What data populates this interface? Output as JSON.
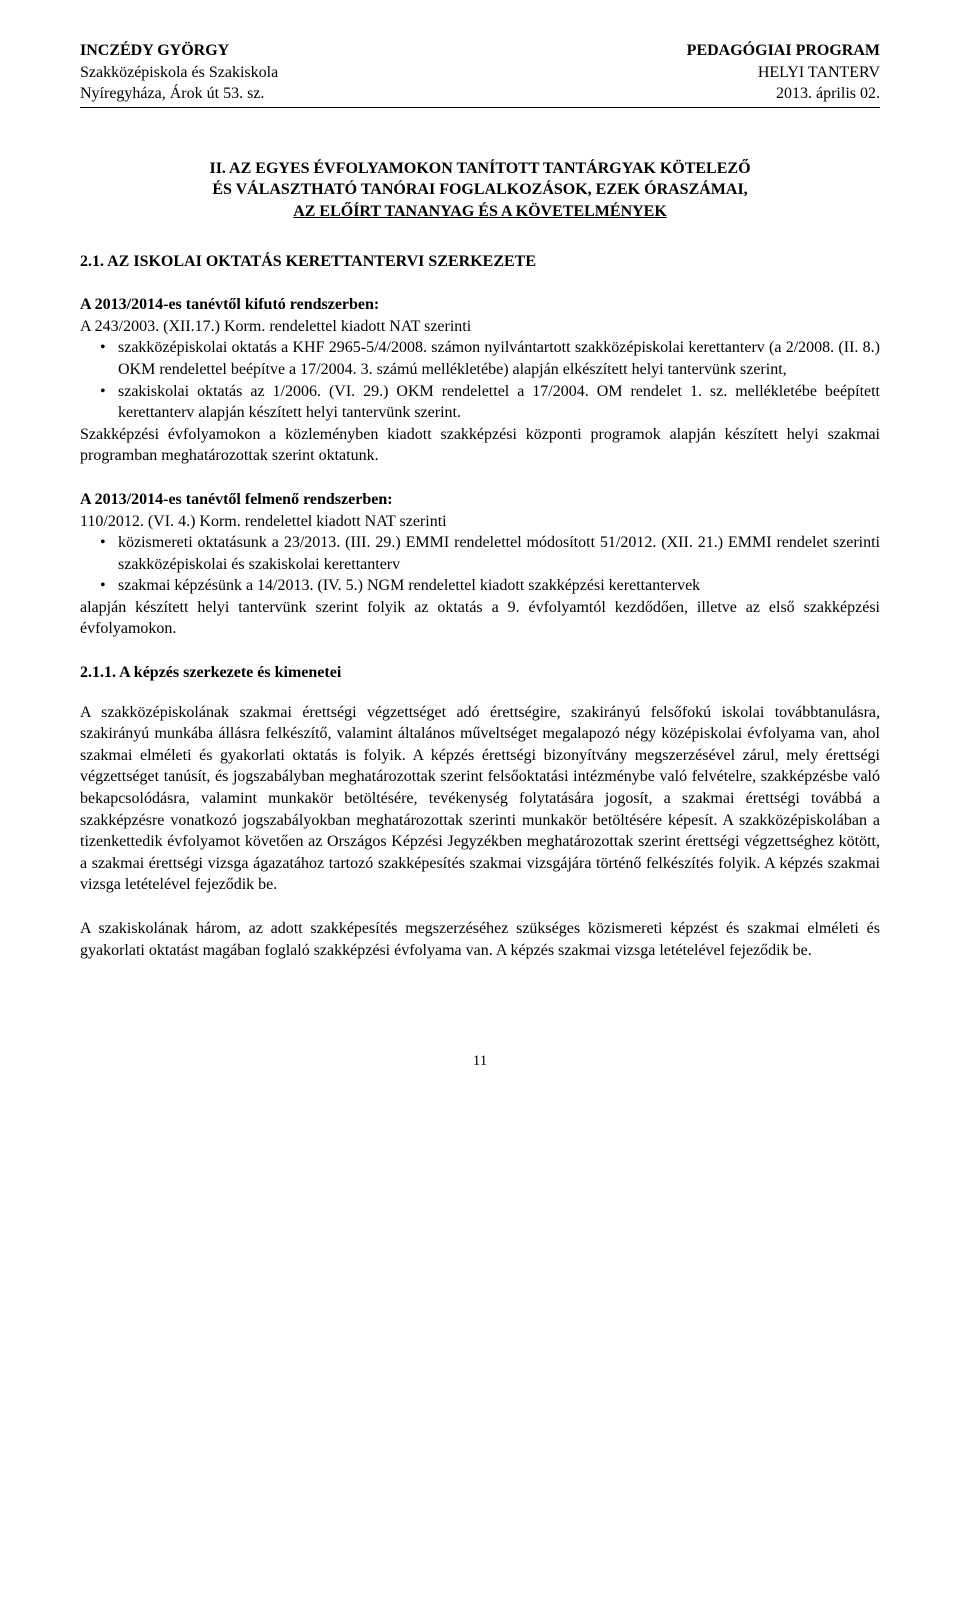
{
  "header": {
    "left": {
      "line1": "INCZÉDY GYÖRGY",
      "line2": "Szakközépiskola és Szakiskola",
      "line3": "Nyíregyháza, Árok út 53. sz."
    },
    "right": {
      "line1": "PEDAGÓGIAI PROGRAM",
      "line2": "HELYI TANTERV",
      "line3": "2013. április 02."
    }
  },
  "main_title": {
    "line1": "II. AZ EGYES ÉVFOLYAMOKON TANÍTOTT TANTÁRGYAK KÖTELEZŐ",
    "line2": "ÉS VÁLASZTHATÓ TANÓRAI FOGLALKOZÁSOK, EZEK ÓRASZÁMAI,",
    "line3": "AZ ELŐÍRT TANANYAG ÉS A KÖVETELMÉNYEK"
  },
  "section_2_1": {
    "heading": "2.1.   AZ ISKOLAI OKTATÁS KERETTANTERVI SZERKEZETE",
    "intro_bold": "A 2013/2014-es tanévtől kifutó rendszerben:",
    "intro_line": "A 243/2003. (XII.17.) Korm. rendelettel kiadott NAT szerinti",
    "bullets": [
      "szakközépiskolai oktatás a KHF 2965-5/4/2008. számon nyilvántartott szakközépiskolai kerettanterv (a 2/2008. (II. 8.) OKM rendelettel beépítve a 17/2004. 3. számú mellékletébe) alapján elkészített helyi tantervünk szerint,",
      "szakiskolai oktatás az 1/2006. (VI. 29.) OKM rendelettel a 17/2004. OM rendelet 1. sz. mellékletébe beépített kerettanterv alapján készített helyi tantervünk szerint."
    ],
    "after_bullets": "Szakképzési évfolyamokon a közleményben kiadott szakképzési központi programok alapján készített helyi szakmai programban meghatározottak szerint oktatunk."
  },
  "section_felmeno": {
    "heading": "A 2013/2014-es tanévtől felmenő rendszerben:",
    "intro_line": "110/2012. (VI. 4.) Korm. rendelettel kiadott NAT szerinti",
    "bullets": [
      "közismereti oktatásunk a 23/2013. (III. 29.) EMMI rendelettel módosított 51/2012. (XII. 21.) EMMI rendelet szerinti szakközépiskolai és szakiskolai kerettanterv",
      "szakmai képzésünk a 14/2013. (IV. 5.) NGM rendelettel kiadott szakképzési kerettantervek"
    ],
    "after_bullets": "alapján készített helyi tantervünk szerint folyik az oktatás a 9. évfolyamtól kezdődően, illetve az első szakképzési évfolyamokon."
  },
  "section_2_1_1": {
    "heading": "2.1.1. A képzés szerkezete és kimenetei",
    "para1": "A szakközépiskolának szakmai érettségi végzettséget adó érettségire, szakirányú felsőfokú iskolai továbbtanulásra, szakirányú munkába állásra felkészítő, valamint általános műveltséget megalapozó négy középiskolai évfolyama van, ahol szakmai elméleti és gyakorlati oktatás is folyik. A képzés érettségi bizonyítvány megszerzésével zárul, mely érettségi végzettséget tanúsít, és jogszabályban meghatározottak szerint felsőoktatási intézménybe való felvételre, szakképzésbe való bekapcsolódásra, valamint munkakör betöltésére, tevékenység folytatására jogosít, a szakmai érettségi továbbá a szakképzésre vonatkozó jogszabályokban meghatározottak szerinti munkakör betöltésére képesít. A szakközépiskolában a tizenkettedik évfolyamot követően az Országos Képzési Jegyzékben meghatározottak szerint érettségi végzettséghez kötött, a szakmai érettségi vizsga ágazatához tartozó szakképesítés szakmai vizsgájára történő felkészítés folyik. A képzés szakmai vizsga letételével fejeződik be.",
    "para2": "A szakiskolának három, az adott szakképesítés megszerzéséhez szükséges közismereti képzést és szakmai elméleti és gyakorlati oktatást magában foglaló szakképzési évfolyama van. A képzés szakmai vizsga letételével fejeződik be."
  },
  "page_number": "11",
  "style": {
    "font_family": "Times New Roman",
    "body_font_size_pt": 12,
    "text_color": "#000000",
    "background_color": "#ffffff",
    "border_color": "#000000"
  }
}
